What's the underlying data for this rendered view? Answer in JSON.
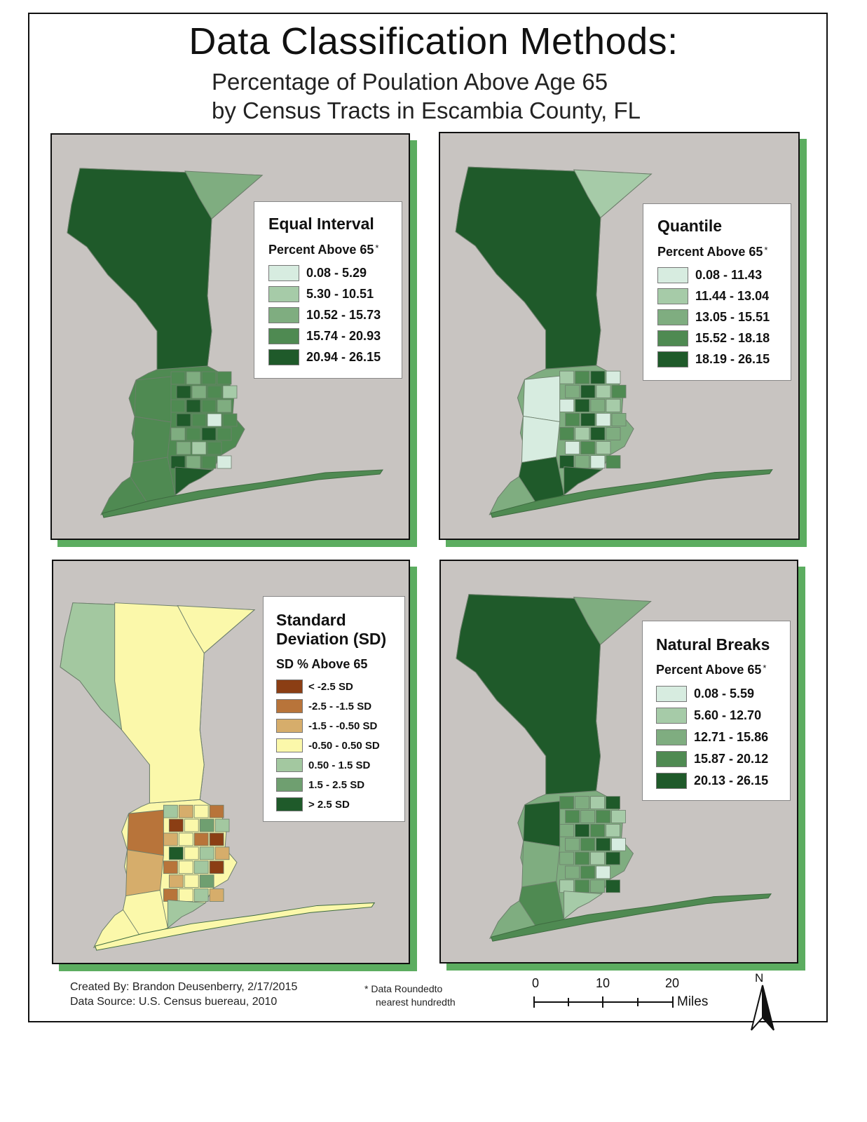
{
  "title": "Data Classification Methods:",
  "subtitle_line1": "Percentage of Poulation Above Age 65",
  "subtitle_line2": "by Census Tracts in Escambia County, FL",
  "colors": {
    "map_background": "#c8c4c1",
    "panel_shadow": "#5cad60",
    "green_classes": [
      "#d7ece0",
      "#a6cba8",
      "#7fad80",
      "#4f8a52",
      "#1f5a2a"
    ],
    "sd_classes": [
      "#8b3e14",
      "#b8743a",
      "#d6ad6b",
      "#fbf8aa",
      "#a3c8a0",
      "#6f9f70",
      "#1f5a2a"
    ]
  },
  "panels": [
    {
      "id": "equal-interval",
      "legend_title": "Equal Interval",
      "legend_subtitle": "Percent Above 65",
      "asterisk": "*",
      "classes": [
        "0.08 - 5.29",
        "5.30 - 10.51",
        "10.52 - 15.73",
        "15.74 - 20.93",
        "20.94 - 26.15"
      ]
    },
    {
      "id": "quantile",
      "legend_title": "Quantile",
      "legend_subtitle": "Percent Above 65",
      "asterisk": "*",
      "classes": [
        "0.08 - 11.43",
        "11.44 - 13.04",
        "13.05 - 15.51",
        "15.52 - 18.18",
        "18.19 - 26.15"
      ]
    },
    {
      "id": "standard-deviation",
      "legend_title_line1": "Standard",
      "legend_title_line2": "Deviation (SD)",
      "legend_subtitle": "SD % Above 65",
      "classes": [
        "< -2.5 SD",
        "-2.5 - -1.5 SD",
        "-1.5 - -0.50 SD",
        "-0.50 - 0.50 SD",
        "0.50 - 1.5 SD",
        "1.5 - 2.5 SD",
        "> 2.5 SD"
      ]
    },
    {
      "id": "natural-breaks",
      "legend_title": "Natural Breaks",
      "legend_subtitle": "Percent Above 65",
      "asterisk": "*",
      "classes": [
        "0.08 - 5.59",
        "5.60 - 12.70",
        "12.71 - 15.86",
        "15.87 - 20.12",
        "20.13 - 26.15"
      ]
    }
  ],
  "footer": {
    "created_by": "Created By: Brandon Deusenberry, 2/17/2015",
    "data_source": "Data Source: U.S. Census buereau, 2010",
    "note_line1": "* Data Roundedto",
    "note_line2": "nearest hundredth"
  },
  "scale_bar": {
    "ticks": [
      "0",
      "10",
      "20"
    ],
    "unit": "Miles"
  },
  "north_arrow": {
    "label": "N",
    "icon": "north-arrow-icon"
  }
}
